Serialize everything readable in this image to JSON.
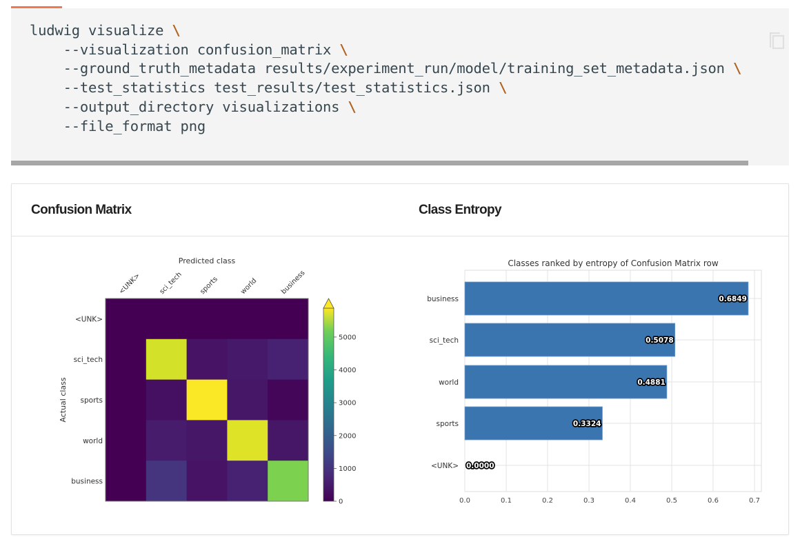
{
  "code_block": {
    "lines": [
      {
        "text": "ludwig visualize ",
        "continuation": "\\"
      },
      {
        "text": "    --visualization confusion_matrix ",
        "continuation": "\\"
      },
      {
        "text": "    --ground_truth_metadata results/experiment_run/model/training_set_metadata.json ",
        "continuation": "\\"
      },
      {
        "text": "    --test_statistics test_results/test_statistics.json ",
        "continuation": "\\"
      },
      {
        "text": "    --output_directory visualizations ",
        "continuation": "\\"
      },
      {
        "text": "    --file_format png",
        "continuation": ""
      }
    ],
    "copy_icon": "copy-icon",
    "accent_color": "#f0784a"
  },
  "card": {
    "left_title": "Confusion Matrix",
    "right_title": "Class Entropy"
  },
  "chart_data": [
    {
      "type": "heatmap",
      "title": "",
      "xlabel": "Predicted class",
      "ylabel": "Actual class",
      "x_categories": [
        "<UNK>",
        "sci_tech",
        "sports",
        "world",
        "business"
      ],
      "y_categories": [
        "<UNK>",
        "sci_tech",
        "sports",
        "world",
        "business"
      ],
      "values": [
        [
          0,
          0,
          0,
          0,
          0
        ],
        [
          0,
          5500,
          300,
          400,
          550
        ],
        [
          0,
          250,
          5850,
          350,
          80
        ],
        [
          0,
          450,
          350,
          5600,
          350
        ],
        [
          0,
          900,
          300,
          550,
          4700
        ]
      ],
      "colormap": "viridis",
      "colorbar": {
        "ticks": [
          0,
          1000,
          2000,
          3000,
          4000,
          5000
        ],
        "vmin": 0,
        "vmax": 5880,
        "extend": "max"
      }
    },
    {
      "type": "bar",
      "orientation": "horizontal",
      "title": "Classes ranked by entropy of Confusion Matrix row",
      "categories": [
        "business",
        "sci_tech",
        "world",
        "sports",
        "<UNK>"
      ],
      "values": [
        0.6849,
        0.5078,
        0.4881,
        0.3324,
        0.0
      ],
      "value_labels": [
        "0.6849",
        "0.5078",
        "0.4881",
        "0.3324",
        "0.0000"
      ],
      "xlabel": "",
      "ylabel": "",
      "xlim": [
        0,
        0.717
      ],
      "xticks": [
        "0.0",
        "0.1",
        "0.2",
        "0.3",
        "0.4",
        "0.5",
        "0.6",
        "0.7"
      ],
      "grid": true,
      "bar_color": "#3b75af"
    }
  ]
}
